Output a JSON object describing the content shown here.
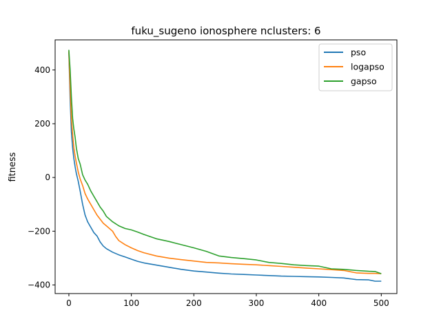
{
  "chart_data": {
    "type": "line",
    "title": "fuku_sugeno ionosphere nclusters: 6",
    "xlabel": "",
    "ylabel": "fitness",
    "xlim": [
      -22,
      525
    ],
    "ylim": [
      -432,
      512
    ],
    "xticks": [
      0,
      100,
      200,
      300,
      400,
      500
    ],
    "yticks": [
      -400,
      -200,
      0,
      200,
      400
    ],
    "xtick_labels": [
      "0",
      "100",
      "200",
      "300",
      "400",
      "500"
    ],
    "ytick_labels": [
      "−400",
      "−200",
      "0",
      "200",
      "400"
    ],
    "grid": false,
    "legend_position": "upper right",
    "series": [
      {
        "name": "pso",
        "color": "#1f77b4",
        "x": [
          0,
          2,
          4,
          6,
          8,
          10,
          12,
          15,
          18,
          22,
          26,
          30,
          35,
          40,
          45,
          50,
          55,
          60,
          70,
          80,
          90,
          100,
          110,
          120,
          140,
          160,
          180,
          200,
          220,
          240,
          260,
          280,
          300,
          320,
          340,
          360,
          380,
          400,
          420,
          440,
          460,
          480,
          490,
          500
        ],
        "y": [
          465,
          290,
          170,
          110,
          70,
          40,
          15,
          -15,
          -50,
          -100,
          -140,
          -165,
          -185,
          -205,
          -218,
          -240,
          -255,
          -265,
          -278,
          -288,
          -296,
          -304,
          -312,
          -318,
          -326,
          -334,
          -342,
          -348,
          -352,
          -356,
          -359,
          -361,
          -363,
          -365,
          -367,
          -368,
          -369,
          -370,
          -372,
          -374,
          -380,
          -381,
          -386,
          -386
        ]
      },
      {
        "name": "logapso",
        "color": "#ff7f0e",
        "x": [
          0,
          2,
          4,
          6,
          8,
          10,
          12,
          15,
          18,
          22,
          26,
          30,
          35,
          40,
          45,
          50,
          55,
          60,
          70,
          75,
          80,
          90,
          100,
          110,
          120,
          140,
          160,
          180,
          200,
          220,
          240,
          260,
          280,
          300,
          320,
          340,
          360,
          380,
          400,
          420,
          440,
          460,
          480,
          490,
          500
        ],
        "y": [
          470,
          330,
          220,
          160,
          110,
          80,
          55,
          20,
          -5,
          -30,
          -60,
          -80,
          -100,
          -120,
          -140,
          -155,
          -170,
          -180,
          -200,
          -220,
          -235,
          -250,
          -262,
          -272,
          -280,
          -292,
          -300,
          -306,
          -311,
          -316,
          -318,
          -321,
          -323,
          -325,
          -328,
          -331,
          -334,
          -337,
          -340,
          -343,
          -346,
          -355,
          -357,
          -357,
          -358
        ]
      },
      {
        "name": "gapso",
        "color": "#2ca02c",
        "x": [
          0,
          2,
          4,
          6,
          8,
          10,
          12,
          15,
          18,
          22,
          26,
          30,
          35,
          40,
          45,
          50,
          55,
          60,
          70,
          80,
          90,
          100,
          110,
          120,
          140,
          160,
          180,
          200,
          220,
          240,
          260,
          280,
          300,
          320,
          340,
          360,
          380,
          400,
          420,
          440,
          460,
          480,
          490,
          500
        ],
        "y": [
          475,
          400,
          300,
          220,
          180,
          150,
          110,
          70,
          50,
          10,
          -10,
          -25,
          -50,
          -70,
          -90,
          -110,
          -125,
          -145,
          -165,
          -180,
          -190,
          -195,
          -203,
          -212,
          -228,
          -238,
          -250,
          -262,
          -275,
          -292,
          -298,
          -302,
          -307,
          -316,
          -320,
          -325,
          -328,
          -330,
          -340,
          -342,
          -346,
          -349,
          -350,
          -358
        ]
      }
    ]
  }
}
